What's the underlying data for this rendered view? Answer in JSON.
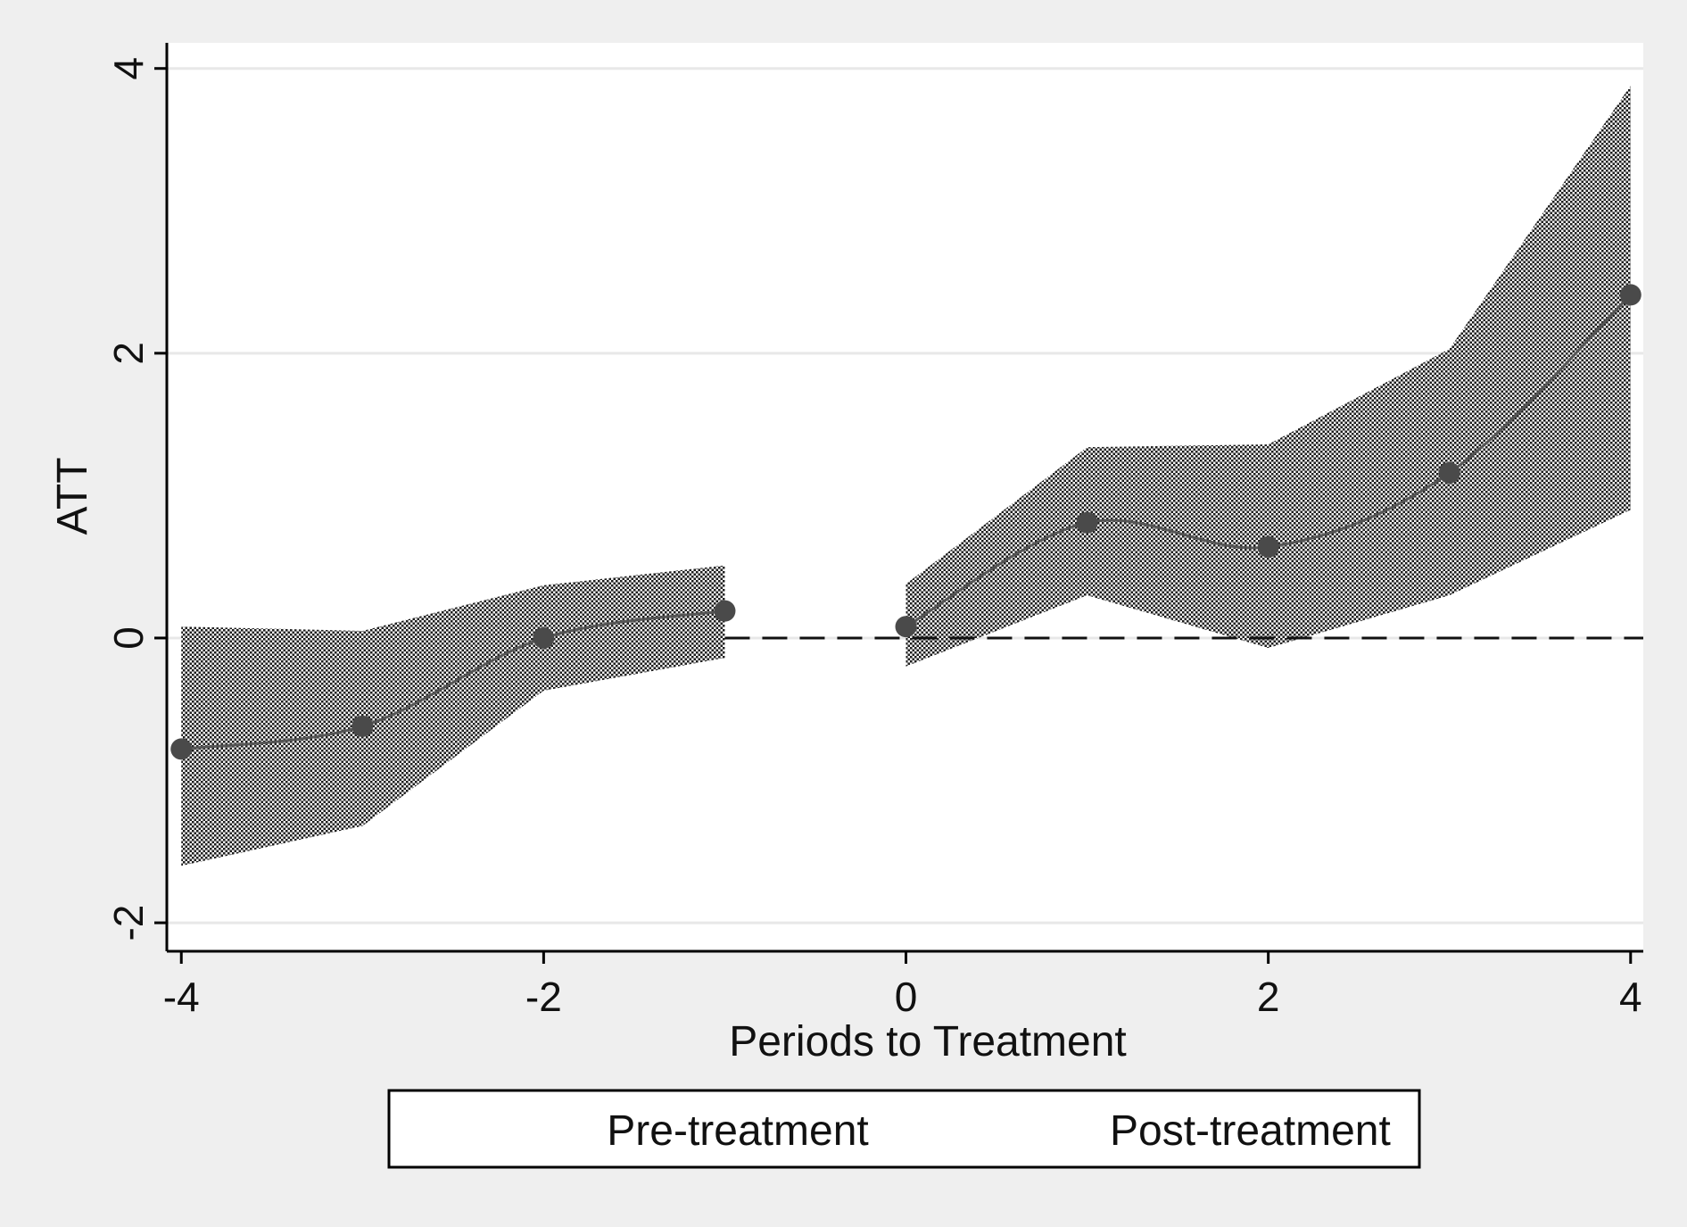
{
  "chart_data": {
    "type": "line",
    "title": "",
    "xlabel": "Periods to Treatment",
    "ylabel": "ATT",
    "xlim": [
      -4.08,
      4.07
    ],
    "ylim": [
      -2.2,
      4.18
    ],
    "x_ticks": [
      -4,
      -2,
      0,
      2,
      4
    ],
    "x_tick_labels": [
      "-4",
      "-2",
      "0",
      "2",
      "4"
    ],
    "y_ticks": [
      -2,
      0,
      2,
      4
    ],
    "y_tick_labels": [
      "-2",
      "0",
      "2",
      "4"
    ],
    "grid": "horizontal",
    "reference_line": {
      "y": 0,
      "style": "dashed"
    },
    "colors": {
      "background": "#efefef",
      "plot_background": "#ffffff",
      "gridline": "#e8e8e8",
      "line": "#555555",
      "marker": "#4a4a4a",
      "band": "#222222"
    },
    "series": [
      {
        "name": "Pre-treatment",
        "x": [
          -4,
          -3,
          -2,
          -1
        ],
        "y": [
          -0.78,
          -0.62,
          0.0,
          0.19
        ],
        "ci_lower": [
          -1.6,
          -1.32,
          -0.37,
          -0.14
        ],
        "ci_upper": [
          0.08,
          0.05,
          0.37,
          0.51
        ]
      },
      {
        "name": "Post-treatment",
        "x": [
          0,
          1,
          2,
          3,
          4
        ],
        "y": [
          0.08,
          0.81,
          0.64,
          1.16,
          2.41
        ],
        "ci_lower": [
          -0.2,
          0.3,
          -0.07,
          0.3,
          0.9
        ],
        "ci_upper": [
          0.38,
          1.34,
          1.36,
          2.03,
          3.88
        ]
      }
    ],
    "legend": {
      "position": "bottom",
      "entries": [
        "Pre-treatment",
        "Post-treatment"
      ]
    }
  }
}
